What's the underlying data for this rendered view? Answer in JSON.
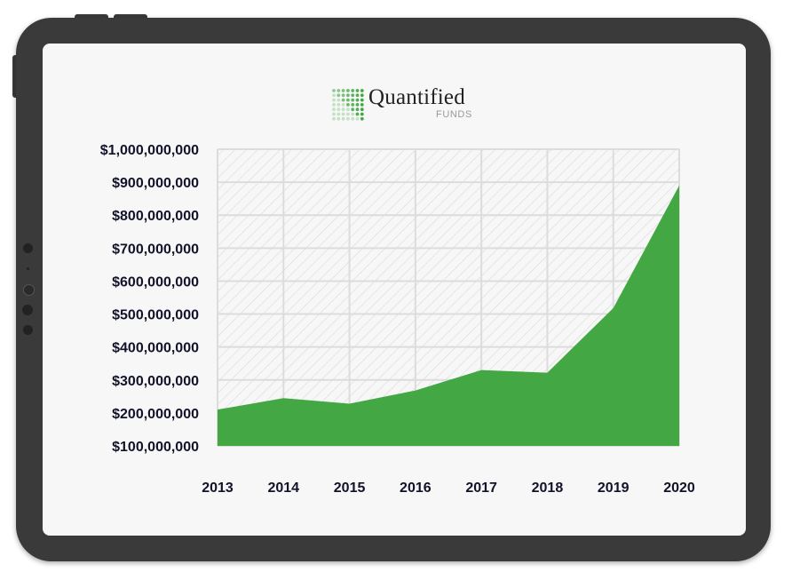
{
  "logo": {
    "title": "Quantified",
    "subtitle": "FUNDS",
    "icon": "dot-grid-logo-icon",
    "brand_color": "#43a843"
  },
  "chart_data": {
    "type": "area",
    "title": "",
    "xlabel": "",
    "ylabel": "",
    "x": [
      "2013",
      "2014",
      "2015",
      "2016",
      "2017",
      "2018",
      "2019",
      "2020"
    ],
    "series": [
      {
        "values": [
          210000000,
          245000000,
          228000000,
          268000000,
          330000000,
          322000000,
          518000000,
          890000000
        ]
      }
    ],
    "ylim": [
      100000000,
      1000000000
    ],
    "y_ticks": [
      "$1,000,000,000",
      "$900,000,000",
      "$800,000,000",
      "$700,000,000",
      "$600,000,000",
      "$500,000,000",
      "$400,000,000",
      "$300,000,000",
      "$200,000,000",
      "$100,000,000"
    ],
    "grid": true,
    "fill_color": "#43a843",
    "background_pattern": "diagonal-hatch"
  }
}
